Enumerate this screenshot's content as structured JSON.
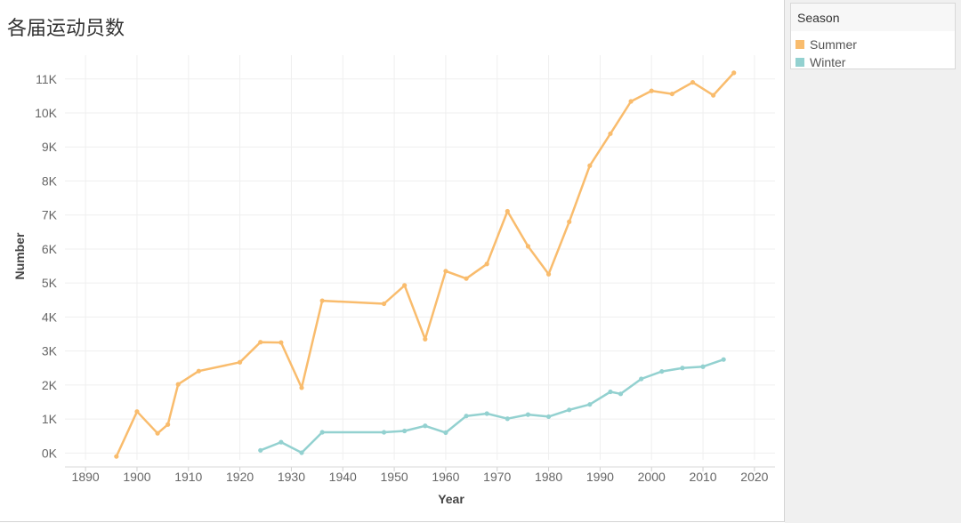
{
  "title": "各届运动员数",
  "legend": {
    "title": "Season",
    "items": [
      {
        "label": "Summer",
        "color": "#f9bc6d"
      },
      {
        "label": "Winter",
        "color": "#93d1d0"
      }
    ]
  },
  "chart_data": {
    "type": "line",
    "xlabel": "Year",
    "ylabel": "Number",
    "xlim": [
      1886,
      2024
    ],
    "ylim": [
      -200,
      11700
    ],
    "x_ticks": [
      1890,
      1900,
      1910,
      1920,
      1930,
      1940,
      1950,
      1960,
      1970,
      1980,
      1990,
      2000,
      2010,
      2020
    ],
    "y_ticks": [
      {
        "value": 0,
        "label": "0K"
      },
      {
        "value": 1000,
        "label": "1K"
      },
      {
        "value": 2000,
        "label": "2K"
      },
      {
        "value": 3000,
        "label": "3K"
      },
      {
        "value": 4000,
        "label": "4K"
      },
      {
        "value": 5000,
        "label": "5K"
      },
      {
        "value": 6000,
        "label": "6K"
      },
      {
        "value": 7000,
        "label": "7K"
      },
      {
        "value": 8000,
        "label": "8K"
      },
      {
        "value": 9000,
        "label": "9K"
      },
      {
        "value": 10000,
        "label": "10K"
      },
      {
        "value": 11000,
        "label": "11K"
      }
    ],
    "grid": true,
    "series": [
      {
        "name": "Summer",
        "color": "#f9bc6d",
        "x": [
          1896,
          1900,
          1904,
          1906,
          1908,
          1912,
          1920,
          1924,
          1928,
          1932,
          1936,
          1948,
          1952,
          1956,
          1960,
          1964,
          1968,
          1972,
          1976,
          1980,
          1984,
          1988,
          1992,
          1996,
          2000,
          2004,
          2008,
          2012,
          2016
        ],
        "y": [
          -100,
          1220,
          580,
          840,
          2020,
          2410,
          2670,
          3260,
          3250,
          1920,
          4480,
          4390,
          4930,
          3350,
          5350,
          5130,
          5560,
          7110,
          6080,
          5260,
          6800,
          8450,
          9390,
          10340,
          10650,
          10560,
          10900,
          10520,
          11180
        ]
      },
      {
        "name": "Winter",
        "color": "#93d1d0",
        "x": [
          1924,
          1928,
          1932,
          1936,
          1948,
          1952,
          1956,
          1960,
          1964,
          1968,
          1972,
          1976,
          1980,
          1984,
          1988,
          1992,
          1994,
          1998,
          2002,
          2006,
          2010,
          2014
        ],
        "y": [
          80,
          320,
          10,
          610,
          610,
          650,
          800,
          600,
          1090,
          1160,
          1010,
          1130,
          1070,
          1270,
          1430,
          1800,
          1740,
          2180,
          2400,
          2500,
          2540,
          2750
        ]
      }
    ]
  }
}
